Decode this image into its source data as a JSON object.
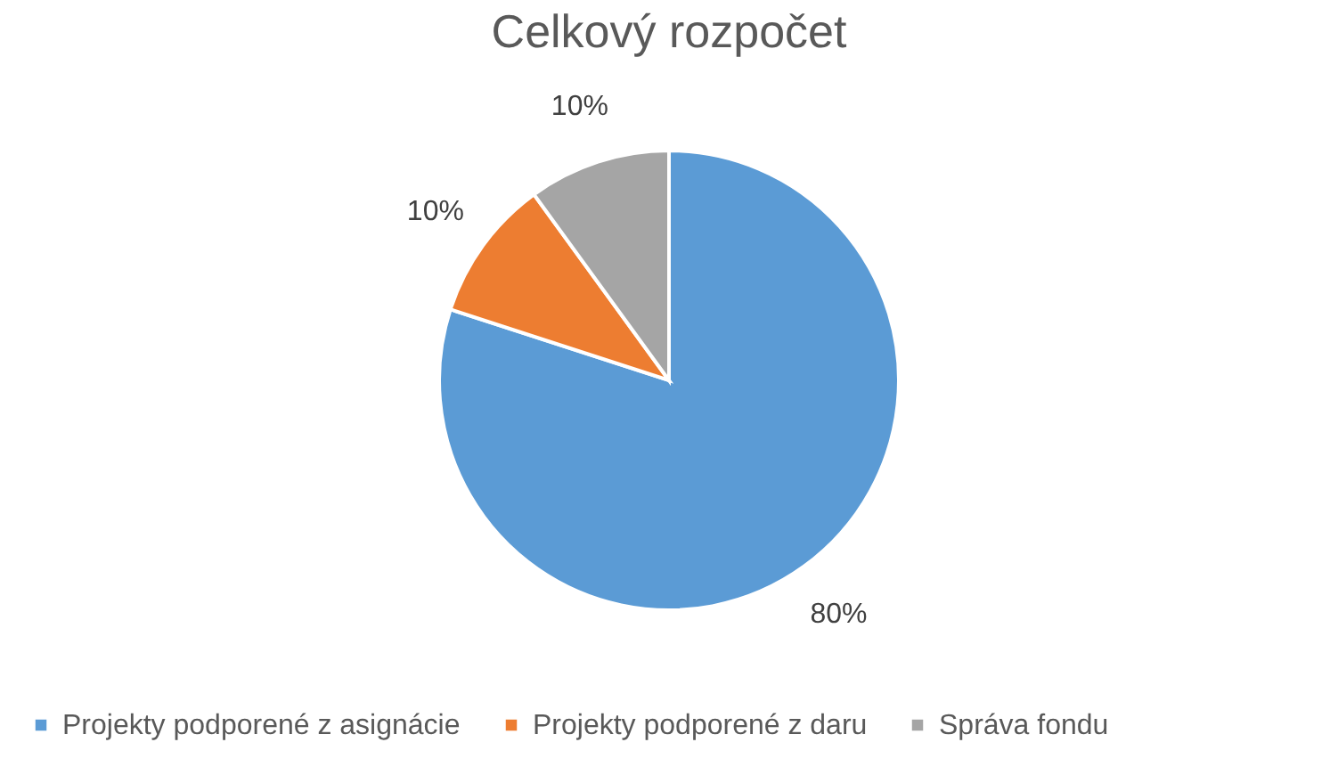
{
  "chart_data": {
    "type": "pie",
    "title": "Celkový rozpočet",
    "categories": [
      "Projekty podporené z asignácie",
      "Projekty podporené z daru",
      "Správa fondu"
    ],
    "values": [
      80,
      10,
      10
    ],
    "colors": [
      "#5b9bd5",
      "#ed7d31",
      "#a5a5a5"
    ],
    "value_labels": [
      "80%",
      "10%",
      "10%"
    ],
    "legend": "bottom"
  }
}
